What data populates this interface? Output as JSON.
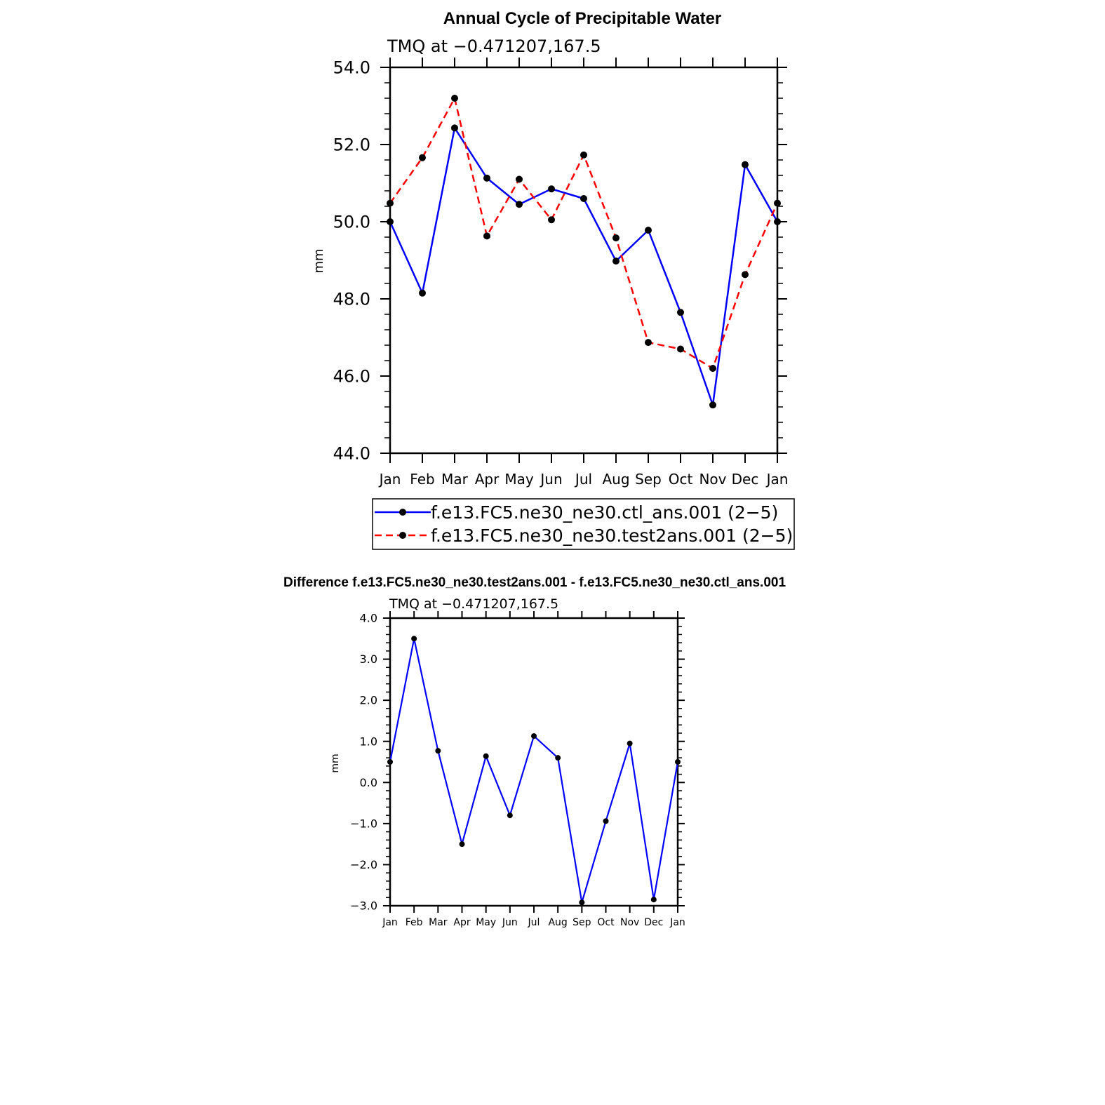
{
  "chart_data": [
    {
      "type": "line",
      "title": "Annual Cycle of Precipitable Water",
      "subtitle": "TMQ at −0.471207,167.5",
      "xlabel": "",
      "ylabel": "mm",
      "categories": [
        "Jan",
        "Feb",
        "Mar",
        "Apr",
        "May",
        "Jun",
        "Jul",
        "Aug",
        "Sep",
        "Oct",
        "Nov",
        "Dec",
        "Jan"
      ],
      "ylim": [
        44.0,
        54.0
      ],
      "yticks": [
        "44.0",
        "46.0",
        "48.0",
        "50.0",
        "52.0",
        "54.0"
      ],
      "ytick_values": [
        44,
        46,
        48,
        50,
        52,
        54
      ],
      "grid": false,
      "legend_position": "bottom",
      "series": [
        {
          "name": "f.e13.FC5.ne30_ne30.ctl_ans.001 (2−5)",
          "color": "#0000ff",
          "dashed": false,
          "values": [
            50.0,
            48.15,
            52.43,
            51.13,
            50.45,
            50.85,
            50.6,
            48.98,
            49.78,
            47.65,
            45.25,
            51.48,
            50.0
          ]
        },
        {
          "name": "f.e13.FC5.ne30_ne30.test2ans.001 (2−5)",
          "color": "#ff0000",
          "dashed": true,
          "values": [
            50.48,
            51.66,
            53.2,
            49.63,
            51.1,
            50.05,
            51.73,
            49.58,
            46.87,
            46.7,
            46.2,
            48.63,
            50.48
          ]
        }
      ]
    },
    {
      "type": "line",
      "title": "Difference f.e13.FC5.ne30_ne30.test2ans.001 - f.e13.FC5.ne30_ne30.ctl_ans.001",
      "subtitle": "TMQ at −0.471207,167.5",
      "xlabel": "",
      "ylabel": "mm",
      "categories": [
        "Jan",
        "Feb",
        "Mar",
        "Apr",
        "May",
        "Jun",
        "Jul",
        "Aug",
        "Sep",
        "Oct",
        "Nov",
        "Dec",
        "Jan"
      ],
      "ylim": [
        -3.0,
        4.0
      ],
      "yticks": [
        "−3.0",
        "−2.0",
        "−1.0",
        "0.0",
        "1.0",
        "2.0",
        "3.0",
        "4.0"
      ],
      "ytick_values": [
        -3,
        -2,
        -1,
        0,
        1,
        2,
        3,
        4
      ],
      "grid": false,
      "series": [
        {
          "color": "#0000ff",
          "dashed": false,
          "values": [
            0.5,
            3.5,
            0.77,
            -1.5,
            0.64,
            -0.8,
            1.13,
            0.6,
            -2.92,
            -0.94,
            0.95,
            -2.85,
            0.5
          ]
        }
      ]
    }
  ]
}
